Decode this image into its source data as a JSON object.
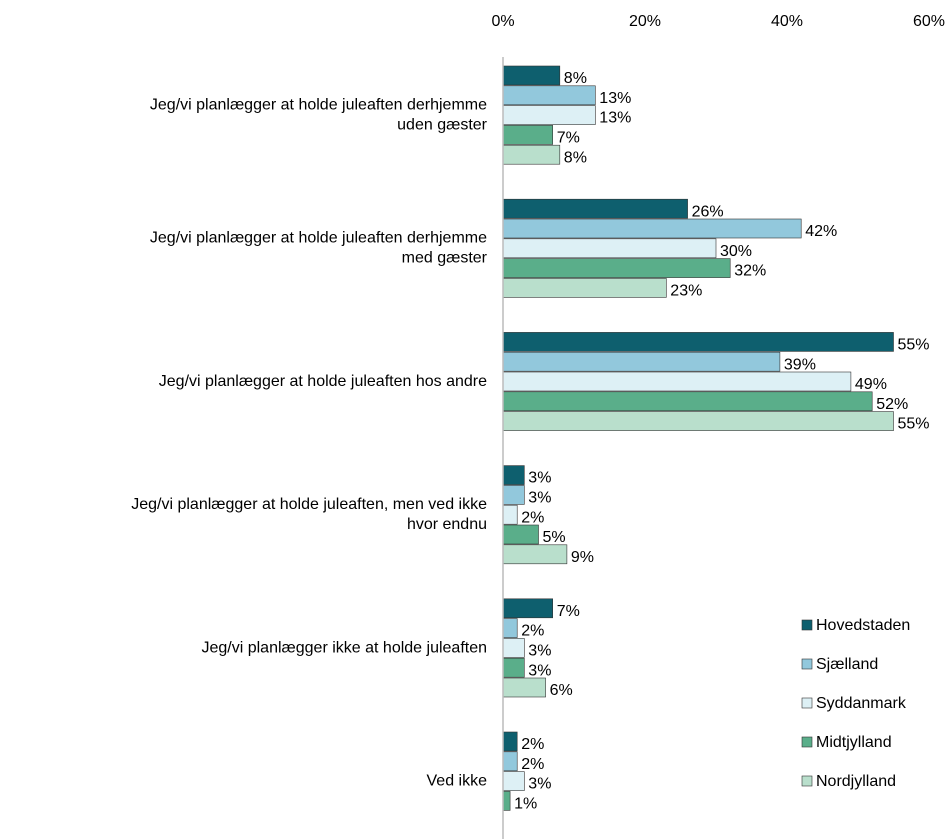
{
  "chart_data": {
    "type": "hbar",
    "categories": [
      [
        "Jeg/vi planlægger at holde juleaften derhjemme",
        "uden gæster"
      ],
      [
        "Jeg/vi planlægger at holde juleaften derhjemme",
        "med gæster"
      ],
      [
        "Jeg/vi planlægger at holde juleaften hos andre"
      ],
      [
        "Jeg/vi planlægger at holde juleaften, men ved ikke",
        "hvor endnu"
      ],
      [
        "Jeg/vi planlægger ikke at holde juleaften"
      ],
      [
        "Ved ikke"
      ]
    ],
    "series": [
      {
        "name": "Hovedstaden",
        "color": "#0e5f6e",
        "values": [
          8,
          26,
          55,
          3,
          7,
          2
        ],
        "value_labels": [
          "8%",
          "26%",
          "55%",
          "3%",
          "7%",
          "2%"
        ]
      },
      {
        "name": "Sjælland",
        "color": "#92c8dc",
        "values": [
          13,
          42,
          39,
          3,
          2,
          2
        ],
        "value_labels": [
          "13%",
          "42%",
          "39%",
          "3%",
          "2%",
          "2%"
        ]
      },
      {
        "name": "Syddanmark",
        "color": "#ddf0f5",
        "values": [
          13,
          30,
          49,
          2,
          3,
          3
        ],
        "value_labels": [
          "13%",
          "30%",
          "49%",
          "2%",
          "3%",
          "3%"
        ]
      },
      {
        "name": "Midtjylland",
        "color": "#5aae8a",
        "values": [
          7,
          32,
          52,
          5,
          3,
          1
        ],
        "value_labels": [
          "7%",
          "32%",
          "52%",
          "5%",
          "3%",
          "1%"
        ]
      },
      {
        "name": "Nordjylland",
        "color": "#b9dfcc",
        "values": [
          8,
          23,
          55,
          9,
          6,
          null
        ],
        "value_labels": [
          "8%",
          "23%",
          "55%",
          "9%",
          "6%",
          null
        ]
      }
    ],
    "xlim": [
      0,
      60
    ],
    "xticks": [
      {
        "value": 0,
        "label": "0%"
      },
      {
        "value": 20,
        "label": "20%"
      },
      {
        "value": 40,
        "label": "40%"
      },
      {
        "value": 60,
        "label": "60%"
      }
    ],
    "legend": "lower right"
  }
}
